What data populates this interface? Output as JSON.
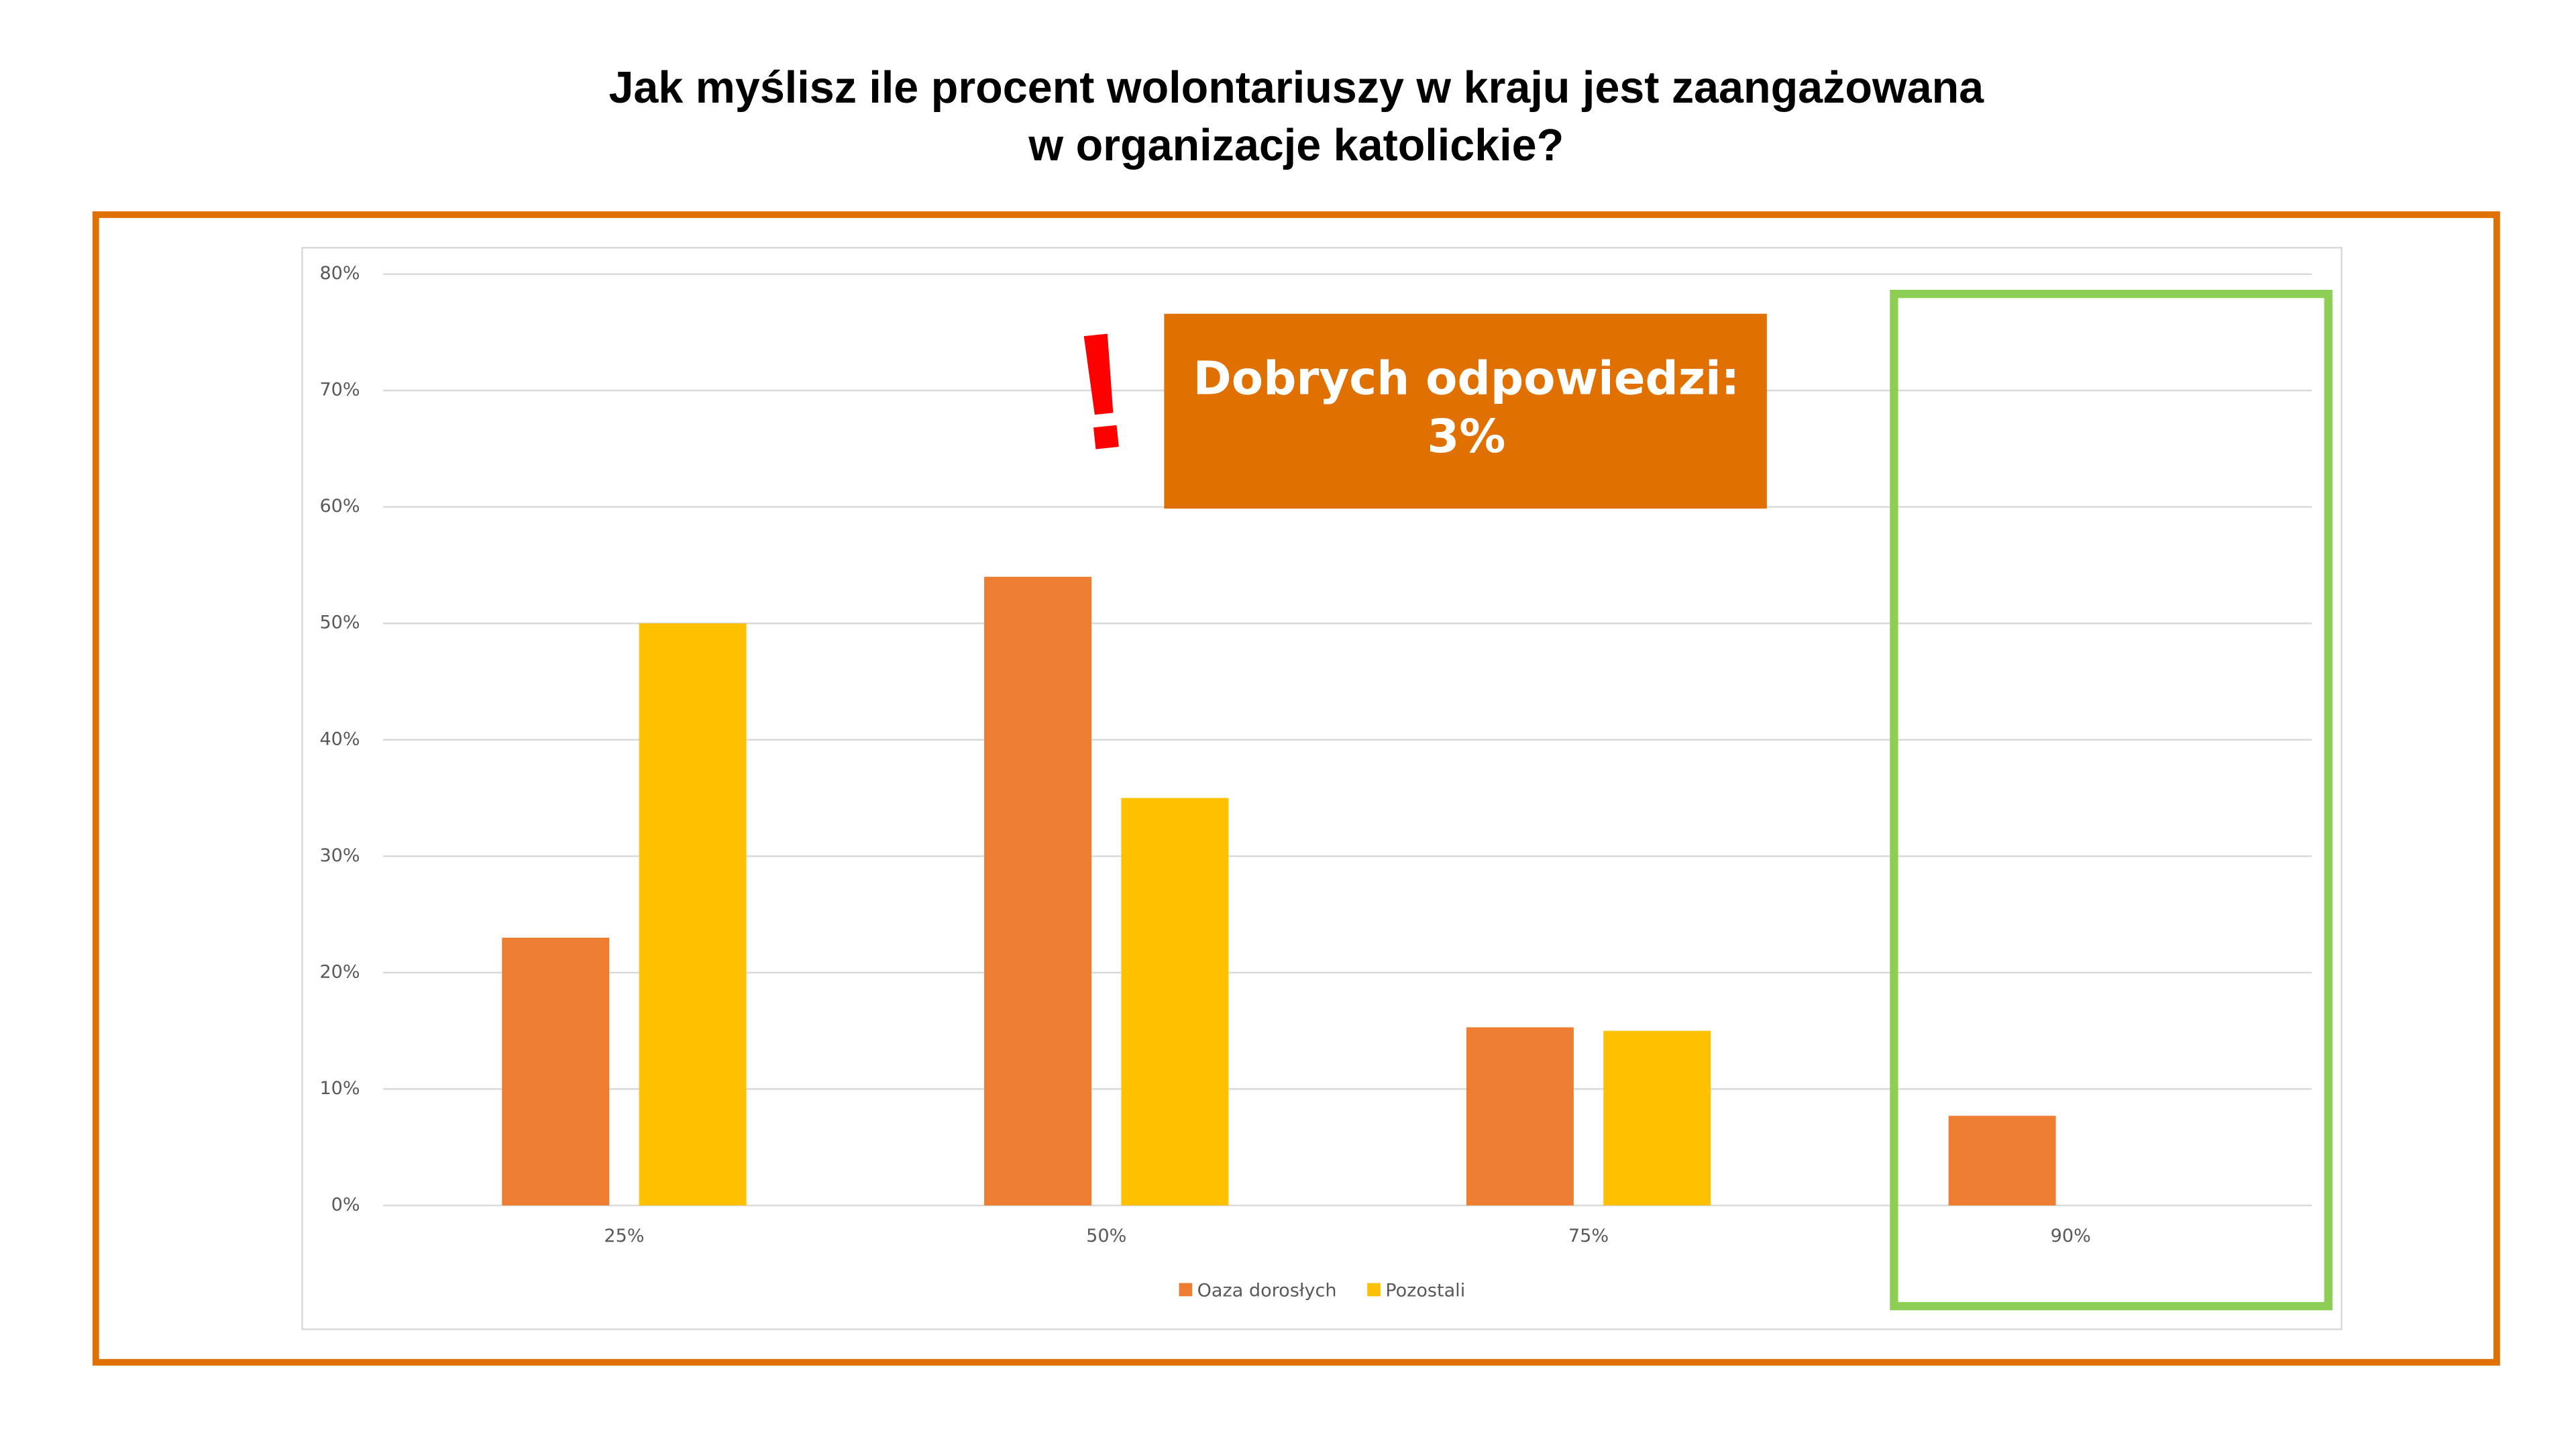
{
  "chart_data": {
    "type": "bar",
    "title": [
      "Jak myślisz ile procent wolontariuszy w kraju jest zaangażowana",
      "w organizacje katolickie?"
    ],
    "annotation": [
      "Dobrych odpowiedzi:",
      "3%"
    ],
    "alert": "!",
    "categories": [
      "25%",
      "50%",
      "75%",
      "90%"
    ],
    "series": [
      {
        "name": "Oaza dorosłych",
        "color": "#ed7d31",
        "values": [
          23,
          54,
          15.3,
          7.7
        ]
      },
      {
        "name": "Pozostali",
        "color": "#ffc000",
        "values": [
          50,
          35,
          15,
          0
        ]
      }
    ],
    "ylim": [
      0,
      80
    ],
    "yticks": [
      {
        "value": 0,
        "label": "0%"
      },
      {
        "value": 10,
        "label": "10%"
      },
      {
        "value": 20,
        "label": "20%"
      },
      {
        "value": 30,
        "label": "30%"
      },
      {
        "value": 40,
        "label": "40%"
      },
      {
        "value": 50,
        "label": "50%"
      },
      {
        "value": 60,
        "label": "60%"
      },
      {
        "value": 70,
        "label": "70%"
      },
      {
        "value": 80,
        "label": "80%"
      }
    ],
    "grid": true,
    "legend": "bottom"
  }
}
